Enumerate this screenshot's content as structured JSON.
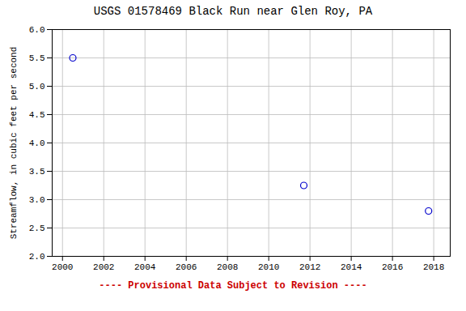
{
  "chart_data": {
    "type": "scatter",
    "title": "USGS 01578469 Black Run near Glen Roy, PA",
    "ylabel": "Streamflow, in cubic feet per second",
    "x": [
      2000.5,
      2011.7,
      2017.75
    ],
    "values": [
      5.5,
      3.25,
      2.8
    ],
    "color": "#0000cc",
    "marker": "open circle",
    "xlim": [
      1999.5,
      2018.8
    ],
    "ylim": [
      2.0,
      6.0
    ],
    "xticks": [
      2000,
      2002,
      2004,
      2006,
      2008,
      2010,
      2012,
      2014,
      2016,
      2018
    ],
    "yticks": [
      {
        "value": 2.0,
        "label": "2.0"
      },
      2.5,
      {
        "value": 3.0,
        "label": "3.0"
      },
      3.5,
      {
        "value": 4.0,
        "label": "4.0"
      },
      4.5,
      {
        "value": 5.0,
        "label": "5.0"
      },
      5.5,
      {
        "value": 6.0,
        "label": "6.0"
      }
    ],
    "grid": true,
    "annotations": [
      {
        "text": "---- Provisional Data Subject to Revision ----",
        "color": "#cc0000"
      }
    ]
  }
}
